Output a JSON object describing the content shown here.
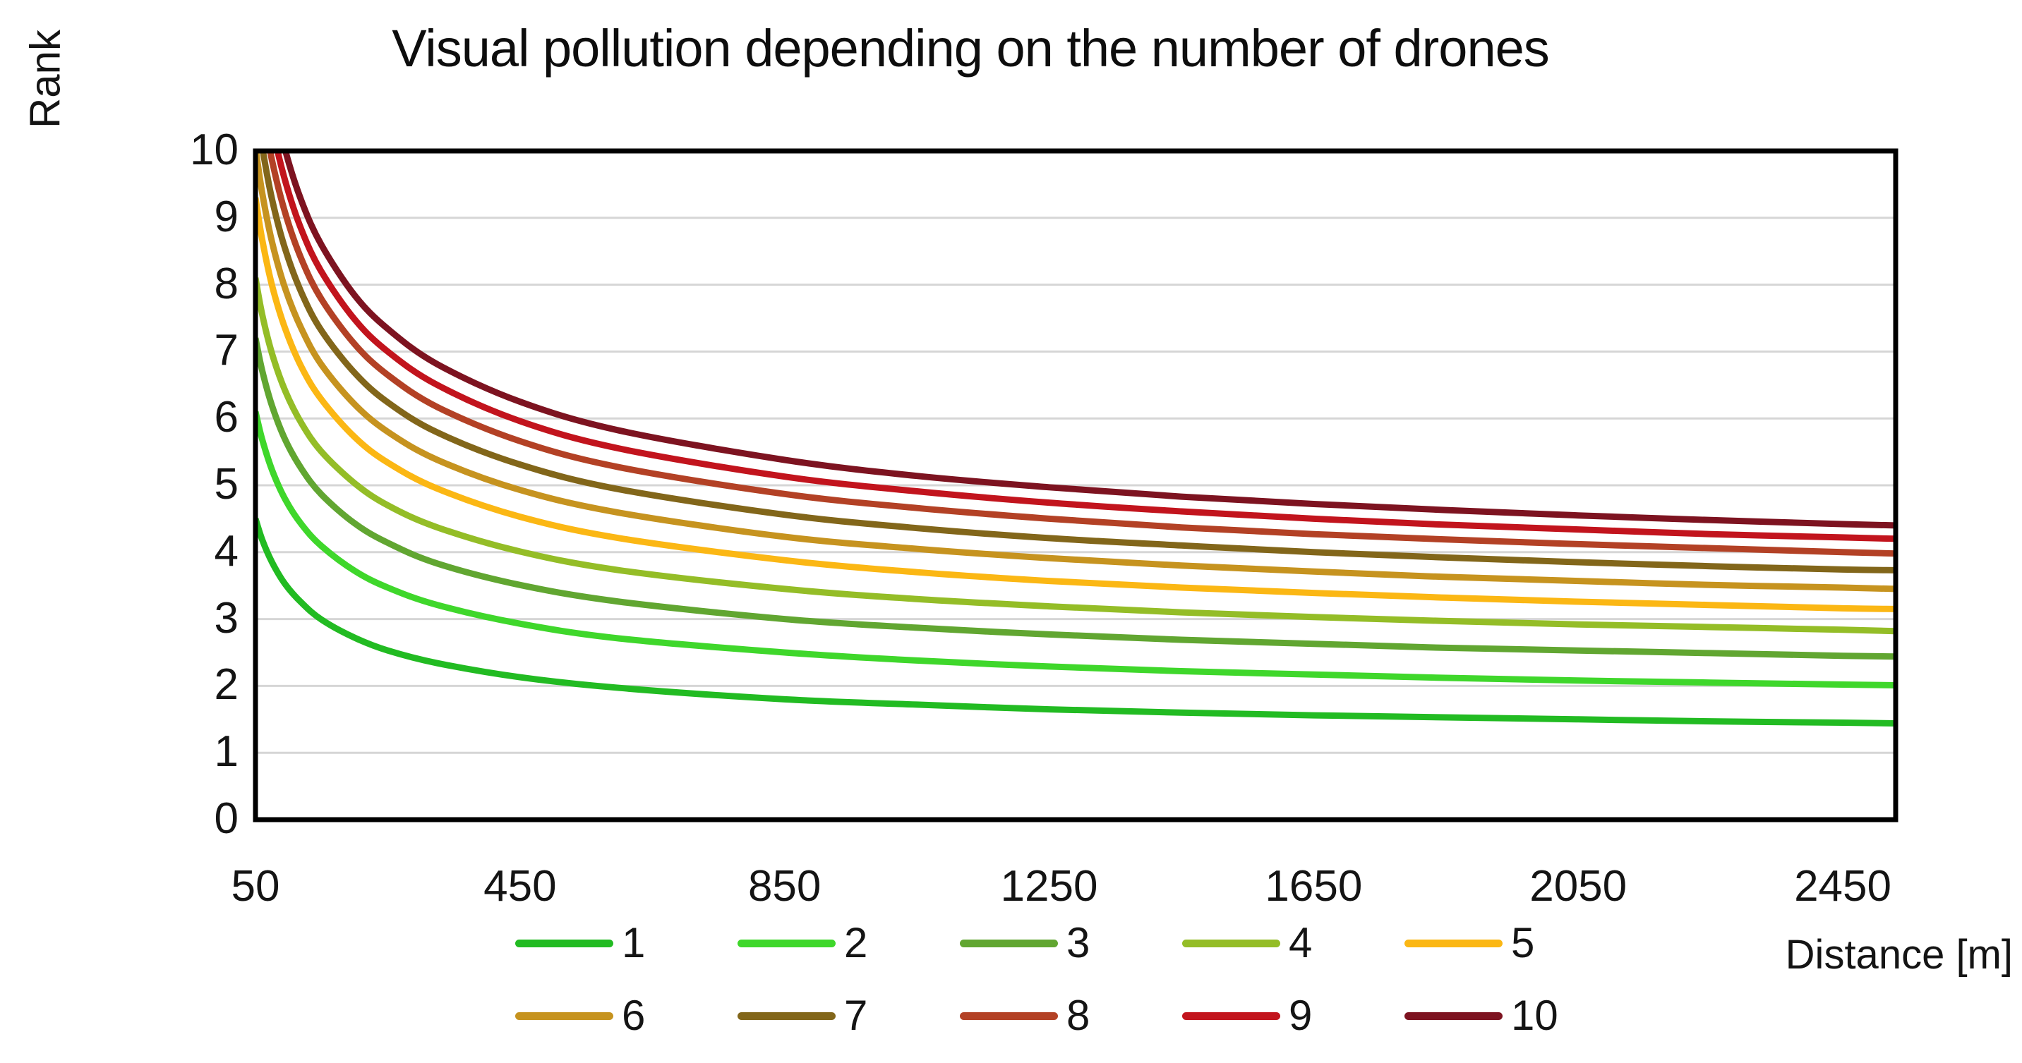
{
  "title": "Visual pollution depending on the number of drones",
  "axes": {
    "y_label": "Rank",
    "x_label": "Distance [m]"
  },
  "colors": {
    "background": "#ffffff",
    "grid": "#d6d6d6",
    "axis_box": "#000000",
    "text": "#141414"
  },
  "chart_data": {
    "type": "line",
    "title": "Visual pollution depending on the number of drones",
    "xlabel": "Distance [m]",
    "ylabel": "Rank",
    "xlim": [
      50,
      2530
    ],
    "ylim": [
      0,
      10
    ],
    "x_ticks": [
      50,
      450,
      850,
      1250,
      1650,
      2050,
      2450
    ],
    "y_ticks": [
      0,
      1,
      2,
      3,
      4,
      5,
      6,
      7,
      8,
      9,
      10
    ],
    "grid": "horizontal",
    "legend_position": "bottom-two-rows",
    "clipped_to_ylim": true,
    "x": [
      50,
      60,
      75,
      95,
      120,
      150,
      200,
      250,
      325,
      450,
      600,
      850,
      1050,
      1250,
      1450,
      1650,
      1850,
      2050,
      2250,
      2450,
      2530
    ],
    "series": [
      {
        "name": "1",
        "color": "#22bb22",
        "values": [
          4.5,
          4.19,
          3.85,
          3.52,
          3.24,
          2.99,
          2.72,
          2.53,
          2.34,
          2.13,
          1.97,
          1.8,
          1.72,
          1.65,
          1.6,
          1.56,
          1.53,
          1.5,
          1.47,
          1.45,
          1.44
        ]
      },
      {
        "name": "2",
        "color": "#3fd72b",
        "values": [
          6.1,
          5.69,
          5.23,
          4.79,
          4.41,
          4.09,
          3.72,
          3.47,
          3.21,
          2.93,
          2.71,
          2.5,
          2.38,
          2.29,
          2.22,
          2.17,
          2.12,
          2.08,
          2.05,
          2.02,
          2.01
        ]
      },
      {
        "name": "3",
        "color": "#61a631",
        "values": [
          7.2,
          6.72,
          6.19,
          5.68,
          5.24,
          4.86,
          4.43,
          4.14,
          3.83,
          3.51,
          3.26,
          3.0,
          2.87,
          2.77,
          2.69,
          2.63,
          2.57,
          2.53,
          2.49,
          2.45,
          2.44
        ]
      },
      {
        "name": "4",
        "color": "#94bd27",
        "values": [
          8.1,
          7.56,
          6.97,
          6.41,
          5.92,
          5.5,
          5.03,
          4.7,
          4.37,
          4.01,
          3.73,
          3.45,
          3.3,
          3.19,
          3.1,
          3.03,
          2.97,
          2.92,
          2.88,
          2.84,
          2.82
        ]
      },
      {
        "name": "5",
        "color": "#fbb714",
        "values": [
          9.3,
          8.68,
          7.99,
          7.34,
          6.76,
          6.28,
          5.72,
          5.34,
          4.95,
          4.53,
          4.21,
          3.88,
          3.7,
          3.57,
          3.47,
          3.39,
          3.32,
          3.26,
          3.21,
          3.16,
          3.15
        ]
      },
      {
        "name": "6",
        "color": "#c6931f",
        "values": [
          10.05,
          9.38,
          8.64,
          7.94,
          7.33,
          6.8,
          6.21,
          5.8,
          5.38,
          4.93,
          4.59,
          4.23,
          4.05,
          3.91,
          3.8,
          3.71,
          3.63,
          3.57,
          3.51,
          3.47,
          3.45
        ]
      },
      {
        "name": "7",
        "color": "#82661a",
        "values": [
          10.78,
          10.07,
          9.28,
          8.53,
          7.87,
          7.31,
          6.68,
          6.24,
          5.79,
          5.31,
          4.94,
          4.56,
          4.36,
          4.21,
          4.1,
          4.0,
          3.92,
          3.85,
          3.79,
          3.74,
          3.73
        ]
      },
      {
        "name": "8",
        "color": "#b34125",
        "values": [
          11.45,
          10.69,
          9.86,
          9.07,
          8.37,
          7.78,
          7.11,
          6.65,
          6.17,
          5.66,
          5.27,
          4.87,
          4.66,
          4.5,
          4.37,
          4.27,
          4.19,
          4.12,
          4.06,
          4.0,
          3.98
        ]
      },
      {
        "name": "9",
        "color": "#c2141d",
        "values": [
          12.06,
          11.26,
          10.38,
          9.55,
          8.81,
          8.19,
          7.48,
          7.0,
          6.5,
          5.96,
          5.55,
          5.13,
          4.91,
          4.74,
          4.61,
          4.5,
          4.41,
          4.34,
          4.27,
          4.22,
          4.2
        ]
      },
      {
        "name": "10",
        "color": "#7d1320",
        "values": [
          12.64,
          11.8,
          10.88,
          10.01,
          9.24,
          8.59,
          7.84,
          7.34,
          6.81,
          6.25,
          5.82,
          5.38,
          5.14,
          4.97,
          4.83,
          4.72,
          4.63,
          4.55,
          4.48,
          4.42,
          4.4
        ]
      }
    ]
  },
  "legend": {
    "row_split": 5,
    "entries": [
      "1",
      "2",
      "3",
      "4",
      "5",
      "6",
      "7",
      "8",
      "9",
      "10"
    ]
  }
}
